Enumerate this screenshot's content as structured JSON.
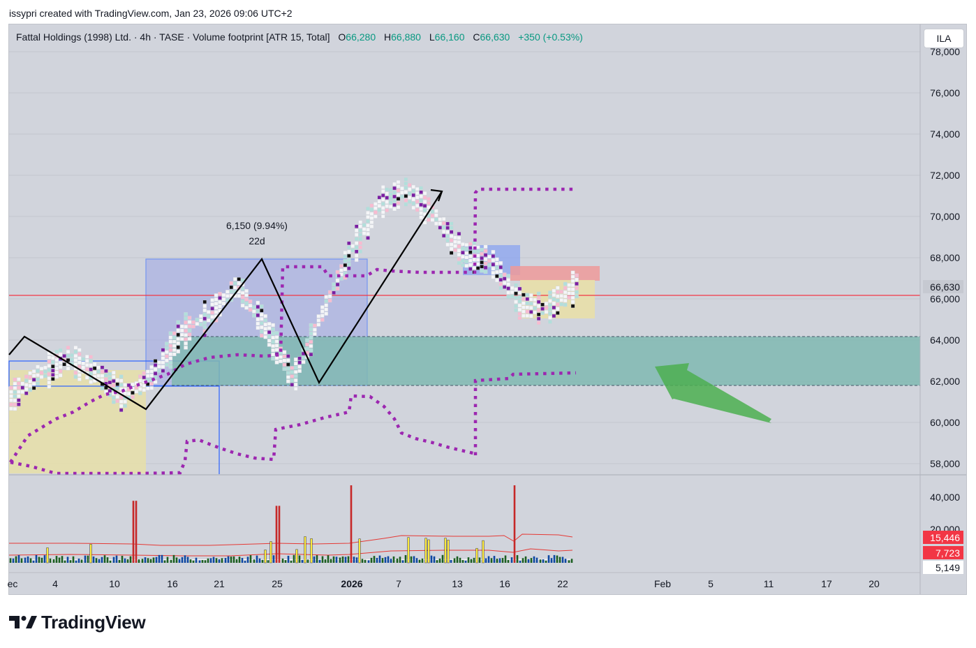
{
  "credit": "issypri created with TradingView.com, Jan 23, 2026 09:06 UTC+2",
  "header": {
    "symbol": "Fattal Holdings (1998) Ltd. · 4h · TASE · Volume footprint [ATR 15, Total]",
    "open_label": "O",
    "open": "66,280",
    "high_label": "H",
    "high": "66,880",
    "low_label": "L",
    "low": "66,160",
    "close_label": "C",
    "close": "66,630",
    "change": "+350 (+0.53%)"
  },
  "currency_button": "ILA",
  "colors": {
    "pane": "#d1d4dc",
    "up": "#089981",
    "last_price_line": "#f23645",
    "dotted_level": "#9c27b0",
    "range_box": "#2962ff",
    "demand_zone": "#80b8b2",
    "consolidation": "#e8dfa8",
    "supply_zone": "#ef9a9a",
    "arrow": "#4caf50",
    "volume_up": "#1b5e20",
    "volume_down": "#0d47a1",
    "volume_spike": "#c62828",
    "volume_high": "#ffeb3b"
  },
  "chart_data": {
    "type": "candlestick-footprint",
    "price_axis": {
      "ticks": [
        "58,000",
        "60,000",
        "62,000",
        "64,000",
        "66,000",
        "68,000",
        "70,000",
        "72,000",
        "74,000",
        "76,000",
        "78,000"
      ],
      "last_price_label": "66,630",
      "last_price": 66630,
      "ylim": [
        57500,
        78500
      ]
    },
    "volume_axis": {
      "ticks": [
        "20,000",
        "40,000"
      ],
      "labels": [
        "15,446",
        "7,723",
        "5,149"
      ]
    },
    "time_axis": {
      "ticks": [
        "ec",
        "4",
        "10",
        "16",
        "21",
        "25",
        "2026",
        "7",
        "13",
        "16",
        "22",
        "Feb",
        "5",
        "11",
        "17",
        "20"
      ]
    },
    "measure": {
      "label": "6,150 (9.94%)",
      "bars": "22d"
    },
    "price_path": [
      {
        "t": "Nov 26",
        "v": 61200
      },
      {
        "t": "Dec 1",
        "v": 62300
      },
      {
        "t": "Dec 4",
        "v": 63100
      },
      {
        "t": "Dec 8",
        "v": 62400
      },
      {
        "t": "Dec 12",
        "v": 61300
      },
      {
        "t": "Dec 16",
        "v": 62200
      },
      {
        "t": "Dec 19",
        "v": 64300
      },
      {
        "t": "Dec 22",
        "v": 65200
      },
      {
        "t": "Dec 24",
        "v": 66600
      },
      {
        "t": "Dec 26",
        "v": 64600
      },
      {
        "t": "Dec 29",
        "v": 62100
      },
      {
        "t": "Jan 1",
        "v": 65300
      },
      {
        "t": "Jan 4",
        "v": 68200
      },
      {
        "t": "Jan 7",
        "v": 70600
      },
      {
        "t": "Jan 10",
        "v": 71200
      },
      {
        "t": "Jan 12",
        "v": 70000
      },
      {
        "t": "Jan 14",
        "v": 68100
      },
      {
        "t": "Jan 16",
        "v": 67800
      },
      {
        "t": "Jan 18",
        "v": 65700
      },
      {
        "t": "Jan 20",
        "v": 65500
      },
      {
        "t": "Jan 22",
        "v": 66630
      }
    ],
    "zones": [
      {
        "name": "demand",
        "from": 61800,
        "to": 64200
      },
      {
        "name": "supply",
        "from": 67000,
        "to": 67700
      },
      {
        "name": "consolidation",
        "from": 65100,
        "to": 66900
      }
    ]
  }
}
